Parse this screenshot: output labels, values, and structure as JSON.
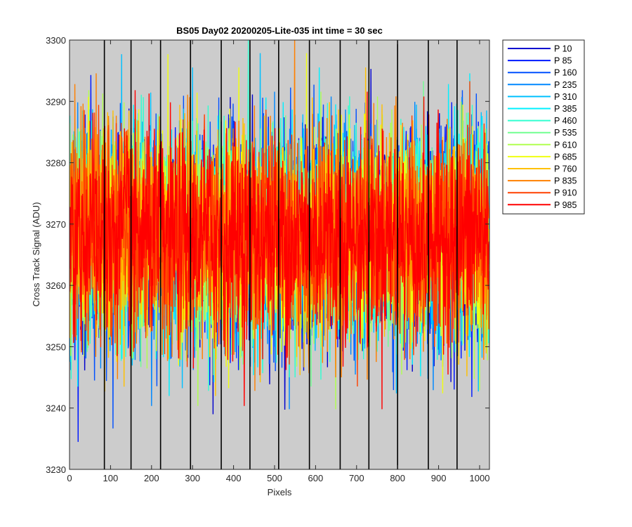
{
  "chart_data": {
    "type": "line",
    "title": "BS05 Day02 20200205-Lite-035 int time = 30 sec",
    "xlabel": "Pixels",
    "ylabel": "Cross Track Signal (ADU)",
    "xlim": [
      0,
      1024
    ],
    "ylim": [
      3230,
      3300
    ],
    "xticks": [
      0,
      100,
      200,
      300,
      400,
      500,
      600,
      700,
      800,
      900,
      1000
    ],
    "yticks": [
      3230,
      3240,
      3250,
      3260,
      3270,
      3280,
      3290,
      3300
    ],
    "xtick_labels": [
      "0",
      "100",
      "200",
      "300",
      "400",
      "500",
      "600",
      "700",
      "800",
      "900",
      "1000"
    ],
    "ytick_labels": [
      "3230",
      "3240",
      "3250",
      "3260",
      "3270",
      "3280",
      "3290",
      "3300"
    ],
    "vertical_lines_x": [
      85,
      150,
      222,
      295,
      370,
      440,
      510,
      585,
      660,
      730,
      800,
      875,
      945
    ],
    "grid": false,
    "plot_background": "#cccccc",
    "legend_position": "outside-top-right",
    "signal": {
      "n_points": 1024,
      "mean": 3268,
      "typical_min": 3250,
      "typical_max": 3285,
      "extreme_min": 3232,
      "extreme_max": 3300
    },
    "series": [
      {
        "name": "P 10",
        "color": "#0000ce"
      },
      {
        "name": "P 85",
        "color": "#0018ff"
      },
      {
        "name": "P 160",
        "color": "#0050ff"
      },
      {
        "name": "P 235",
        "color": "#0088ff"
      },
      {
        "name": "P 310",
        "color": "#00c0ff"
      },
      {
        "name": "P 385",
        "color": "#00f0ff"
      },
      {
        "name": "P 460",
        "color": "#30ffd0"
      },
      {
        "name": "P 535",
        "color": "#70ff90"
      },
      {
        "name": "P 610",
        "color": "#b0ff50"
      },
      {
        "name": "P 685",
        "color": "#f0ff10"
      },
      {
        "name": "P 760",
        "color": "#ffc000"
      },
      {
        "name": "P 835",
        "color": "#ff8000"
      },
      {
        "name": "P 910",
        "color": "#ff4000"
      },
      {
        "name": "P 985",
        "color": "#ff0000"
      }
    ]
  }
}
